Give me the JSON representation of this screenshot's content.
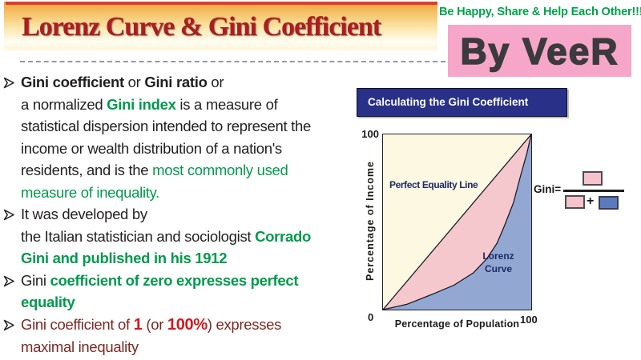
{
  "page": {
    "title": "Lorenz Curve  & Gini Coefficient",
    "tagline": "Be Happy, Share & Help Each Other!!!",
    "byline": "By VeeR"
  },
  "bullets": [
    {
      "marker_icon": "arrow-bullet-icon",
      "segments": [
        {
          "t": "Gini coefficient",
          "c": "bold"
        },
        {
          "t": " or ",
          "c": "plain"
        },
        {
          "t": "Gini ratio",
          "c": "bold"
        },
        {
          "t": " or\n",
          "c": "plain"
        },
        {
          "t": "a normalized ",
          "c": "plain"
        },
        {
          "t": "Gini index",
          "c": "green-bold"
        },
        {
          "t": " is a measure of\nstatistical dispersion intended to represent the\nincome or wealth distribution of a nation's\nresidents, and is the ",
          "c": "plain"
        },
        {
          "t": "most commonly used\nmeasure of inequality.",
          "c": "green"
        }
      ]
    },
    {
      "marker_icon": "arrow-bullet-icon",
      "segments": [
        {
          "t": "It was developed by\nthe Italian statistician and sociologist ",
          "c": "plain"
        },
        {
          "t": "Corrado\nGini and published in his 1912",
          "c": "green-bold"
        }
      ]
    },
    {
      "marker_icon": "arrow-bullet-icon",
      "segments": [
        {
          "t": "Gini ",
          "c": "plain"
        },
        {
          "t": "coefficient of zero expresses perfect\nequality",
          "c": "green-bold"
        }
      ]
    },
    {
      "marker_icon": "arrow-bullet-icon",
      "segments": [
        {
          "t": "Gini coefficient of ",
          "c": "maroon"
        },
        {
          "t": "1",
          "c": "red-bold"
        },
        {
          "t": " (or ",
          "c": "maroon"
        },
        {
          "t": "100%",
          "c": "red-bold"
        },
        {
          "t": ") expresses\nmaximal inequality",
          "c": "maroon"
        }
      ]
    }
  ],
  "chart": {
    "panel_title": "Calculating the Gini Coefficient",
    "y_max_label": "100",
    "origin_label": "0",
    "x_max_label": "100",
    "ylabel": "Percentage of Income",
    "xlabel": "Percentage of Population",
    "equality_label": "Perfect Equality Line",
    "lorenz_label_line1": "Lorenz",
    "lorenz_label_line2": "Curve",
    "formula_lhs": "Gini=",
    "formula_plus": "+"
  },
  "chart_data": {
    "type": "area",
    "title": "Calculating the Gini Coefficient",
    "xlabel": "Percentage of Population",
    "ylabel": "Percentage of Income",
    "xlim": [
      0,
      100
    ],
    "ylim": [
      0,
      100
    ],
    "grid": false,
    "series": [
      {
        "name": "Perfect Equality Line",
        "points": [
          [
            0,
            0
          ],
          [
            100,
            100
          ]
        ]
      },
      {
        "name": "Lorenz Curve",
        "points": [
          [
            0,
            0
          ],
          [
            16,
            3
          ],
          [
            34,
            9
          ],
          [
            48,
            14
          ],
          [
            61,
            21
          ],
          [
            70,
            29
          ],
          [
            77,
            38
          ],
          [
            82,
            48
          ],
          [
            88,
            61
          ],
          [
            93,
            77
          ],
          [
            97,
            89
          ],
          [
            100,
            100
          ]
        ]
      }
    ],
    "areas": [
      {
        "name": "A: between equality line and Lorenz curve",
        "color": "#f5c8ce"
      },
      {
        "name": "B: under Lorenz curve",
        "color": "#92a8d2"
      }
    ],
    "annotation": "Gini = A / (A + B)"
  },
  "colors": {
    "title_red": "#a81e24",
    "top_strip_red": "#e23a2c",
    "band_gold": "#efa13c",
    "green_text": "#009a4d",
    "maroon_text": "#7c2822",
    "bright_red_text": "#d6171f",
    "byline_pink": "#f6a6c8",
    "panel_navy": "#283187",
    "plot_cream": "#fcf8e1",
    "area_pink": "#f5c8ce",
    "area_blue": "#92a8d2",
    "formula_blue": "#5b7bbe",
    "chart_label_navy": "#1c2b66"
  }
}
